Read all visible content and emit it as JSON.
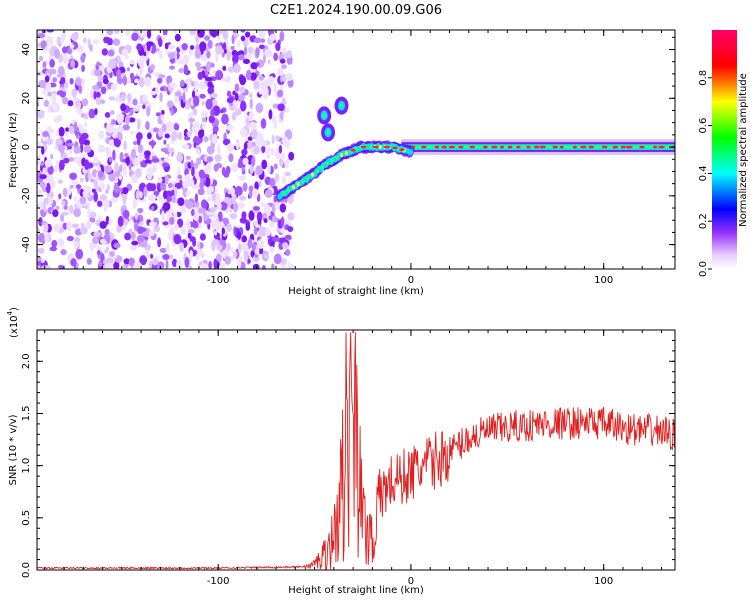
{
  "figure_title": "C2E1.2024.190.00.09.G06",
  "chart_data": [
    {
      "type": "heatmap",
      "xlabel": "Height of straight line (km)",
      "ylabel": "Frequency (Hz)",
      "xlim": [
        -194,
        137
      ],
      "ylim": [
        -50,
        48
      ],
      "x_ticks": [
        -100,
        0,
        100
      ],
      "x_tick_labels": [
        "-100",
        "0",
        "100"
      ],
      "y_ticks": [
        -40,
        -20,
        0,
        20,
        40
      ],
      "y_tick_labels": [
        "-40",
        "-20",
        "0",
        "20",
        "40"
      ],
      "colorbar": {
        "label": "Normalized spectral amplitude",
        "range": [
          0,
          1
        ],
        "ticks": [
          0.0,
          0.2,
          0.4,
          0.6,
          0.8
        ],
        "tick_labels": [
          "0.0",
          "0.2",
          "0.4",
          "0.6",
          "0.8"
        ],
        "colormap": [
          "#ffffff",
          "#e6ccff",
          "#9933ff",
          "#0000ff",
          "#00ffff",
          "#00ff00",
          "#ffff00",
          "#ff0000",
          "#ff00aa"
        ]
      },
      "features": {
        "noise_region_x": [
          -194,
          -62
        ],
        "rising_trace": [
          [
            -68,
            -20
          ],
          [
            -60,
            -16
          ],
          [
            -52,
            -12
          ],
          [
            -44,
            -7
          ],
          [
            -38,
            -4
          ],
          [
            -32,
            -2
          ],
          [
            -26,
            0
          ],
          [
            -20,
            0
          ],
          [
            -10,
            0
          ],
          [
            0,
            -2
          ],
          [
            10,
            0
          ],
          [
            20,
            0
          ],
          [
            137,
            0
          ]
        ],
        "blobs": [
          [
            -45,
            13
          ],
          [
            -43,
            6
          ],
          [
            -36,
            17
          ]
        ],
        "carrier_frequency_hz": 0
      }
    },
    {
      "type": "line",
      "xlabel": "Height of straight line (km)",
      "ylabel": "SNR (10 * v/v)",
      "multiplier_label": "(x10",
      "multiplier_exp": "4",
      "multiplier_close": ")",
      "xlim": [
        -194,
        137
      ],
      "ylim": [
        0,
        2.3
      ],
      "x_ticks": [
        -100,
        0,
        100
      ],
      "x_tick_labels": [
        "-100",
        "0",
        "100"
      ],
      "y_ticks": [
        0,
        0.5,
        1.0,
        1.5,
        2.0
      ],
      "y_tick_labels": [
        "0.0",
        "0.5",
        "1.0",
        "1.5",
        "2.0"
      ],
      "line_color": "#e02020",
      "series_outline": [
        [
          -194,
          0.02
        ],
        [
          -140,
          0.02
        ],
        [
          -100,
          0.02
        ],
        [
          -60,
          0.03
        ],
        [
          -52,
          0.04
        ],
        [
          -48,
          0.1
        ],
        [
          -44,
          0.2
        ],
        [
          -40,
          0.35
        ],
        [
          -37,
          0.7
        ],
        [
          -35,
          0.9
        ],
        [
          -33,
          1.5
        ],
        [
          -31,
          2.0
        ],
        [
          -29,
          2.25
        ],
        [
          -27,
          1.0
        ],
        [
          -25,
          0.5
        ],
        [
          -22,
          0.4
        ],
        [
          -19,
          0.35
        ],
        [
          -17,
          0.7
        ],
        [
          -12,
          0.85
        ],
        [
          -6,
          0.9
        ],
        [
          0,
          0.95
        ],
        [
          10,
          1.05
        ],
        [
          20,
          1.15
        ],
        [
          30,
          1.28
        ],
        [
          40,
          1.35
        ],
        [
          50,
          1.38
        ],
        [
          60,
          1.4
        ],
        [
          70,
          1.42
        ],
        [
          80,
          1.42
        ],
        [
          90,
          1.43
        ],
        [
          100,
          1.42
        ],
        [
          110,
          1.38
        ],
        [
          120,
          1.35
        ],
        [
          130,
          1.35
        ],
        [
          137,
          1.3
        ]
      ]
    }
  ]
}
